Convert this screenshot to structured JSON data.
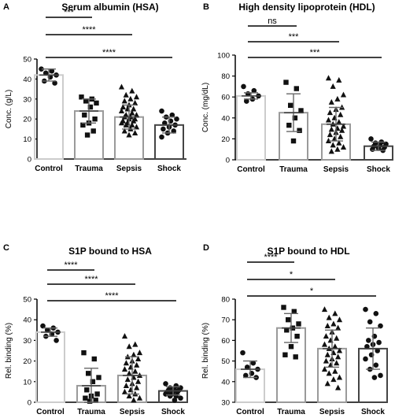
{
  "chart_data": [
    {
      "panel": "A",
      "type": "bar",
      "title": "Serum albumin (HSA)",
      "ylabel": "Conc. (g/L)",
      "xlabel": "",
      "categories": [
        "Control",
        "Trauma",
        "Sepsis",
        "Shock"
      ],
      "ylim": [
        0,
        50
      ],
      "yticks": [
        0,
        10,
        20,
        30,
        40,
        50
      ],
      "markers": [
        "circle",
        "square",
        "triangle",
        "circle"
      ],
      "bars": [
        {
          "mean": 42,
          "sd": 3
        },
        {
          "mean": 24,
          "sd": 6
        },
        {
          "mean": 21,
          "sd": 6
        },
        {
          "mean": 17,
          "sd": 4
        }
      ],
      "points": [
        [
          45,
          44,
          43,
          42,
          41,
          39,
          38
        ],
        [
          31,
          30,
          29,
          28,
          26,
          22,
          20,
          18,
          17,
          14,
          12
        ],
        [
          36,
          34,
          32,
          31,
          30,
          29,
          28,
          27,
          26,
          25,
          25,
          24,
          23,
          22,
          22,
          21,
          21,
          20,
          20,
          19,
          19,
          18,
          18,
          17,
          17,
          16,
          15,
          14,
          13,
          12
        ],
        [
          24,
          22,
          21,
          20,
          19,
          18,
          17,
          16,
          15,
          14,
          13,
          11
        ]
      ],
      "comparisons": [
        {
          "from": "Control",
          "to": "Trauma",
          "label": "***"
        },
        {
          "from": "Control",
          "to": "Sepsis",
          "label": "****"
        },
        {
          "from": "Control",
          "to": "Shock",
          "label": "****"
        }
      ]
    },
    {
      "panel": "B",
      "type": "bar",
      "title": "High density lipoprotein (HDL)",
      "ylabel": "Conc. (mg/dL)",
      "xlabel": "",
      "categories": [
        "Control",
        "Trauma",
        "Sepsis",
        "Shock"
      ],
      "ylim": [
        0,
        100
      ],
      "yticks": [
        0,
        20,
        40,
        60,
        80,
        100
      ],
      "markers": [
        "circle",
        "square",
        "triangle",
        "circle"
      ],
      "bars": [
        {
          "mean": 61,
          "sd": 3
        },
        {
          "mean": 45,
          "sd": 18
        },
        {
          "mean": 34,
          "sd": 16
        },
        {
          "mean": 13,
          "sd": 4
        }
      ],
      "points": [
        [
          70,
          66,
          63,
          61,
          58,
          56
        ],
        [
          74,
          68,
          52,
          47,
          40,
          33,
          28,
          18
        ],
        [
          78,
          76,
          70,
          62,
          58,
          55,
          50,
          48,
          45,
          43,
          40,
          38,
          36,
          34,
          32,
          30,
          29,
          28,
          26,
          24,
          22,
          20,
          18,
          16,
          14,
          12,
          10,
          8
        ],
        [
          20,
          17,
          16,
          15,
          14,
          13,
          12,
          11,
          10,
          9
        ]
      ],
      "comparisons": [
        {
          "from": "Control",
          "to": "Trauma",
          "label": "ns"
        },
        {
          "from": "Control",
          "to": "Sepsis",
          "label": "***"
        },
        {
          "from": "Control",
          "to": "Shock",
          "label": "***"
        }
      ]
    },
    {
      "panel": "C",
      "type": "bar",
      "title": "S1P bound to HSA",
      "ylabel": "Rel. binding (%)",
      "xlabel": "",
      "categories": [
        "Control",
        "Trauma",
        "Sepsis",
        "Shock"
      ],
      "ylim": [
        0,
        50
      ],
      "yticks": [
        0,
        10,
        20,
        30,
        40,
        50
      ],
      "markers": [
        "circle",
        "square",
        "triangle",
        "circle"
      ],
      "bars": [
        {
          "mean": 34,
          "sd": 2
        },
        {
          "mean": 8,
          "sd": 8.5
        },
        {
          "mean": 13,
          "sd": 9
        }
      ],
      "extra_bar": {
        "mean": 5.5,
        "sd": 2
      },
      "points": [
        [
          37,
          36,
          35,
          34,
          33,
          32,
          30
        ],
        [
          24,
          21,
          14,
          12,
          10,
          6,
          4,
          3,
          2,
          1,
          0.5
        ],
        [
          32,
          28,
          27,
          24,
          23,
          22,
          21,
          20,
          19,
          18,
          17,
          16,
          15,
          14,
          13,
          12,
          11,
          10,
          9,
          8,
          7,
          6,
          5,
          4,
          3,
          2,
          1
        ],
        [
          9,
          8,
          7,
          7,
          6,
          6,
          6,
          5,
          5,
          5,
          4,
          4,
          3,
          3,
          2,
          1
        ]
      ],
      "comparisons": [
        {
          "from": "Control",
          "to": "Trauma",
          "label": "****"
        },
        {
          "from": "Control",
          "to": "Sepsis",
          "label": "****"
        },
        {
          "from": "Control",
          "to": "Shock",
          "label": "****"
        }
      ]
    },
    {
      "panel": "D",
      "type": "bar",
      "title": "S1P bound to HDL",
      "ylabel": "Rel. binding (%)",
      "xlabel": "",
      "categories": [
        "Control",
        "Trauma",
        "Sepsis",
        "Shock"
      ],
      "ylim": [
        30,
        80
      ],
      "yticks": [
        30,
        40,
        50,
        60,
        70,
        80
      ],
      "markers": [
        "circle",
        "square",
        "triangle",
        "circle"
      ],
      "bars": [
        {
          "mean": 46,
          "sd": 4
        },
        {
          "mean": 66,
          "sd": 7
        },
        {
          "mean": 56,
          "sd": 9
        },
        {
          "mean": 56,
          "sd": 10
        }
      ],
      "points": [
        [
          54,
          49,
          47,
          46,
          44,
          43,
          42
        ],
        [
          76,
          74,
          70,
          68,
          66,
          65,
          62,
          57,
          53,
          52
        ],
        [
          75,
          73,
          71,
          70,
          68,
          67,
          66,
          64,
          62,
          61,
          60,
          58,
          57,
          56,
          55,
          54,
          53,
          52,
          51,
          50,
          49,
          48,
          46,
          45,
          44,
          42,
          41,
          39,
          37
        ],
        [
          75,
          73,
          69,
          67,
          62,
          60,
          59,
          58,
          57,
          55,
          53,
          51,
          48,
          46,
          43,
          42
        ]
      ],
      "comparisons": [
        {
          "from": "Control",
          "to": "Trauma",
          "label": "****"
        },
        {
          "from": "Control",
          "to": "Sepsis",
          "label": "*"
        },
        {
          "from": "Control",
          "to": "Shock",
          "label": "*"
        }
      ]
    }
  ]
}
